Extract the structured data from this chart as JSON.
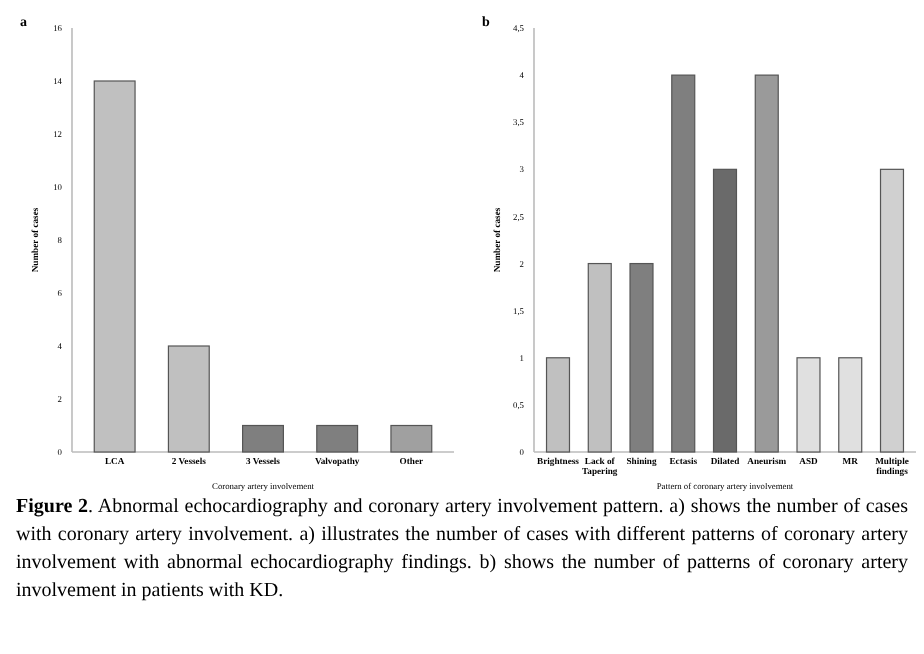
{
  "chart_data": [
    {
      "type": "bar",
      "title": "a",
      "xlabel": "Coronary artery involvement",
      "ylabel": "Number of cases",
      "categories": [
        "LCA",
        "2 Vessels",
        "3 Vessels",
        "Valvopathy",
        "Other"
      ],
      "values": [
        14,
        4,
        1,
        1,
        1
      ],
      "colors": [
        "#c0c0c0",
        "#c0c0c0",
        "#7f7f7f",
        "#7f7f7f",
        "#a0a0a0"
      ],
      "ylim": [
        0,
        16
      ],
      "yticks": [
        0,
        2,
        4,
        6,
        8,
        10,
        12,
        14,
        16
      ],
      "annotations": [
        "Figure 2. Abnormal echocardiography and coronary artery involvement pattern. a) shows the number of cases with coronary artery involvement. a) illustrates the number of cases with different patterns of coronary artery involvement with abnormal echocardiography findings. b) shows the number of patterns of coronary artery involvement in patients with KD."
      ]
    },
    {
      "type": "bar",
      "title": "b",
      "xlabel": "Pattern of coronary artery involvement",
      "ylabel": "Number of cases",
      "categories": [
        "Brightness",
        "Lack of Tapering",
        "Shining",
        "Ectasis",
        "Dilated",
        "Aneurism",
        "ASD",
        "MR",
        "Multiple findings"
      ],
      "values": [
        1,
        2,
        2,
        4,
        3,
        4,
        1,
        1,
        3
      ],
      "colors": [
        "#c0c0c0",
        "#c0c0c0",
        "#7f7f7f",
        "#7f7f7f",
        "#6a6a6a",
        "#9a9a9a",
        "#e0e0e0",
        "#e0e0e0",
        "#d0d0d0"
      ],
      "ylim": [
        0,
        4.5
      ],
      "yticks": [
        0,
        {
          "value": 0.5,
          "label": "0,5"
        },
        1,
        {
          "value": 1.5,
          "label": "1,5"
        },
        2,
        {
          "value": 2.5,
          "label": "2,5"
        },
        3,
        {
          "value": 3.5,
          "label": "3,5"
        },
        4,
        {
          "value": 4.5,
          "label": "4,5"
        }
      ]
    }
  ]
}
